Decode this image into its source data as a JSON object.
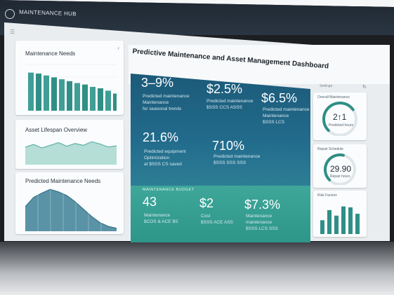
{
  "app": {
    "title": "MAINTENANCE HUB"
  },
  "header": {
    "title": "Predictive Maintenance and Asset Management Dashboard",
    "right_label": "Settings"
  },
  "left_panels": [
    {
      "title": "Maintenance Needs",
      "chart_type": "bar",
      "values": [
        80,
        78,
        74,
        70,
        66,
        62,
        58,
        55,
        50,
        47,
        42,
        36
      ]
    },
    {
      "title": "Asset Lifespan Overview",
      "chart_type": "area",
      "values": [
        40,
        46,
        38,
        44,
        50,
        42,
        48,
        44,
        52,
        47,
        40,
        43
      ]
    },
    {
      "title": "Predicted Maintenance Needs",
      "chart_type": "area",
      "values": [
        40,
        55,
        62,
        68,
        64,
        58,
        48,
        36,
        24,
        14,
        8,
        5
      ]
    }
  ],
  "kpis_top": [
    {
      "value": "3–9%",
      "line1": "Predicted maintenance",
      "line2": "Maintenance",
      "line3": "for seasonal trends"
    },
    {
      "value": "$2.5%",
      "line1": "Predicted maintenance",
      "line2": "$SSS CCS ASSS",
      "line3": ""
    },
    {
      "value": "$6.5%",
      "line1": "Predicted maintenance",
      "line2": "Maintenance",
      "line3": "$SSS LCS"
    }
  ],
  "kpis_mid": [
    {
      "value": "21.6%",
      "line1": "Predicted equipment",
      "line2": "Optimization",
      "line3": "at $SSS CS saved"
    },
    {
      "value": "710%",
      "line1": "Predicted maintenance",
      "line2": "$SSS SSS SSS",
      "line3": ""
    }
  ],
  "section": {
    "label": "MAINTENANCE BUDGET"
  },
  "kpis_bottom": [
    {
      "value": "43",
      "line1": "Maintenance",
      "line2": "$COS & ACE $S"
    },
    {
      "value": "$2",
      "line1": "Cost",
      "line2": "$SSS ACE ASS"
    },
    {
      "value": "$7.3%",
      "line1": "Maintenance",
      "line2": "maintenance",
      "line3": "$SSS LCS SSS"
    }
  ],
  "right_panels": [
    {
      "title": "Overall Maintenance",
      "value": "2↑1",
      "sub": "Predicted hours",
      "fraction": 0.7
    },
    {
      "title": "Repair Schedule",
      "value": "29.90",
      "sub": "Repair hours",
      "fraction": 0.55
    },
    {
      "title": "Risk Factors",
      "values": [
        30,
        52,
        40,
        60,
        58,
        44
      ]
    }
  ],
  "colors": {
    "teal": "#2f8f86",
    "light_teal": "#a8d8cf",
    "dark_blue": "#1c5a79",
    "bar_blue": "#3d7f96"
  }
}
